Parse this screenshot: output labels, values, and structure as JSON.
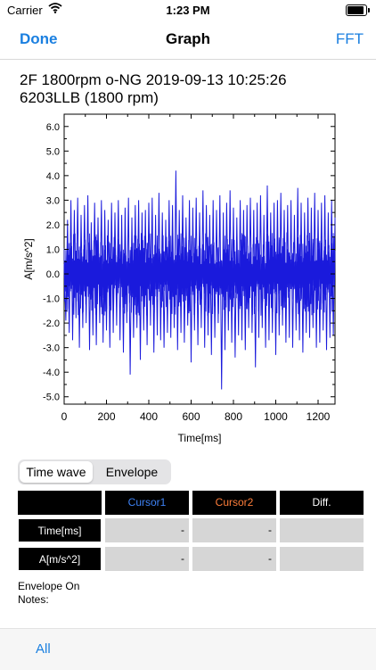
{
  "status": {
    "carrier": "Carrier",
    "time": "1:23 PM",
    "battery_level": 1.0
  },
  "nav": {
    "done": "Done",
    "title": "Graph",
    "fft": "FFT"
  },
  "graph": {
    "line1": "2F 1800rpm o-NG  2019-09-13 10:25:26",
    "line2": "6203LLB (1800 rpm)"
  },
  "chart_data": {
    "type": "line",
    "title": "",
    "xlabel": "Time[ms]",
    "ylabel": "A[m/s^2]",
    "xlim": [
      0,
      1280
    ],
    "ylim": [
      -5.3,
      6.5
    ],
    "x_ticks": [
      0,
      200,
      400,
      600,
      800,
      1000,
      1200
    ],
    "x_tick_labels": [
      "0",
      "200",
      "400",
      "600",
      "800",
      "1000",
      "1200"
    ],
    "y_ticks": [
      -5.0,
      -4.0,
      -3.0,
      -2.0,
      -1.0,
      0.0,
      1.0,
      2.0,
      3.0,
      4.0,
      5.0,
      6.0
    ],
    "y_tick_labels": [
      "-5.0",
      "-4.0",
      "-3.0",
      "-2.0",
      "-1.0",
      "0.0",
      "1.0",
      "2.0",
      "3.0",
      "4.0",
      "5.0",
      "6.0"
    ],
    "grid": false,
    "line_color": "#1a1adc",
    "series": [
      {
        "x": [
          0,
          8,
          16,
          24,
          32,
          40,
          48,
          56,
          64,
          72,
          80,
          88,
          96,
          104,
          112,
          120,
          128,
          136,
          144,
          152,
          160,
          168,
          176,
          184,
          192,
          200,
          208,
          216,
          224,
          232,
          240,
          248,
          256,
          264,
          272,
          280,
          288,
          296,
          304,
          312,
          320,
          328,
          336,
          344,
          352,
          360,
          368,
          376,
          384,
          392,
          400,
          408,
          416,
          424,
          432,
          440,
          448,
          456,
          464,
          472,
          480,
          488,
          496,
          504,
          512,
          520,
          528,
          536,
          544,
          552,
          560,
          568,
          576,
          584,
          592,
          600,
          608,
          616,
          624,
          632,
          640,
          648,
          656,
          664,
          672,
          680,
          688,
          696,
          704,
          712,
          720,
          728,
          736,
          744,
          752,
          760,
          768,
          776,
          784,
          792,
          800,
          808,
          816,
          824,
          832,
          840,
          848,
          856,
          864,
          872,
          880,
          888,
          896,
          904,
          912,
          920,
          928,
          936,
          944,
          952,
          960,
          968,
          976,
          984,
          992,
          1000,
          1008,
          1016,
          1024,
          1032,
          1040,
          1048,
          1056,
          1064,
          1072,
          1080,
          1088,
          1096,
          1104,
          1112,
          1120,
          1128,
          1136,
          1144,
          1152,
          1160,
          1168,
          1176,
          1184,
          1192,
          1200,
          1208,
          1216,
          1224,
          1232,
          1240,
          1248,
          1256,
          1264,
          1272,
          1280
        ],
        "y": [
          0.4,
          -1.9,
          2.2,
          -2.4,
          3.0,
          -2.7,
          2.6,
          -1.8,
          3.1,
          -3.0,
          2.4,
          -2.2,
          2.8,
          -2.0,
          3.2,
          -3.1,
          2.1,
          -2.5,
          2.9,
          -2.9,
          2.3,
          -2.0,
          3.0,
          -2.8,
          2.6,
          -2.3,
          2.2,
          -3.0,
          2.9,
          -2.4,
          2.5,
          -2.1,
          3.0,
          -2.7,
          2.4,
          -3.2,
          2.7,
          -2.0,
          3.1,
          -4.1,
          2.3,
          -2.6,
          2.8,
          -2.2,
          3.0,
          -3.5,
          2.5,
          -2.3,
          2.6,
          -2.9,
          2.9,
          -2.1,
          3.1,
          -3.2,
          2.4,
          -2.5,
          3.3,
          -2.7,
          2.5,
          -3.0,
          2.2,
          -2.4,
          3.0,
          -2.6,
          2.8,
          -2.2,
          4.2,
          -3.1,
          2.6,
          -2.4,
          3.2,
          -2.8,
          2.3,
          -2.1,
          3.0,
          -3.6,
          2.7,
          -2.3,
          3.1,
          -2.9,
          2.5,
          -2.2,
          3.4,
          -3.0,
          2.8,
          -2.5,
          2.4,
          -3.3,
          3.0,
          -2.6,
          2.6,
          -2.0,
          3.2,
          -4.7,
          2.5,
          -3.1,
          2.9,
          -2.3,
          3.4,
          -2.8,
          2.7,
          -3.4,
          2.3,
          -2.5,
          3.0,
          -2.7,
          2.6,
          -3.1,
          2.8,
          -2.2,
          3.1,
          -2.4,
          2.6,
          -3.8,
          2.9,
          -2.6,
          3.2,
          -2.2,
          2.4,
          -3.0,
          3.6,
          -2.7,
          2.5,
          -2.4,
          2.9,
          -3.3,
          3.0,
          -2.5,
          3.3,
          -2.1,
          2.6,
          -2.8,
          2.8,
          -2.6,
          3.0,
          -3.0,
          2.4,
          -2.3,
          3.5,
          -2.7,
          2.9,
          -3.2,
          2.5,
          -2.4,
          3.1,
          -2.6,
          2.7,
          -2.2,
          3.3,
          -3.0,
          2.6,
          -2.8,
          2.9,
          -2.3,
          3.2,
          -3.1,
          2.5,
          -2.6,
          3.0,
          -2.5,
          2.3
        ]
      }
    ]
  },
  "segments": [
    {
      "label": "Time wave",
      "selected": true
    },
    {
      "label": "Envelope",
      "selected": false
    }
  ],
  "cursor_table": {
    "headers": [
      "",
      "Cursor1",
      "Cursor2",
      "Diff."
    ],
    "header_colors": [
      "#000000",
      "#3e82f5",
      "#ff7e3a",
      "#ffffff"
    ],
    "rows": [
      {
        "label": "Time[ms]",
        "values": [
          "-",
          "-",
          ""
        ]
      },
      {
        "label": "A[m/s^2]",
        "values": [
          "-",
          "-",
          ""
        ]
      }
    ]
  },
  "info": {
    "envelope": "Envelope On",
    "notes": "Notes:"
  },
  "bottom": {
    "all": "All"
  }
}
